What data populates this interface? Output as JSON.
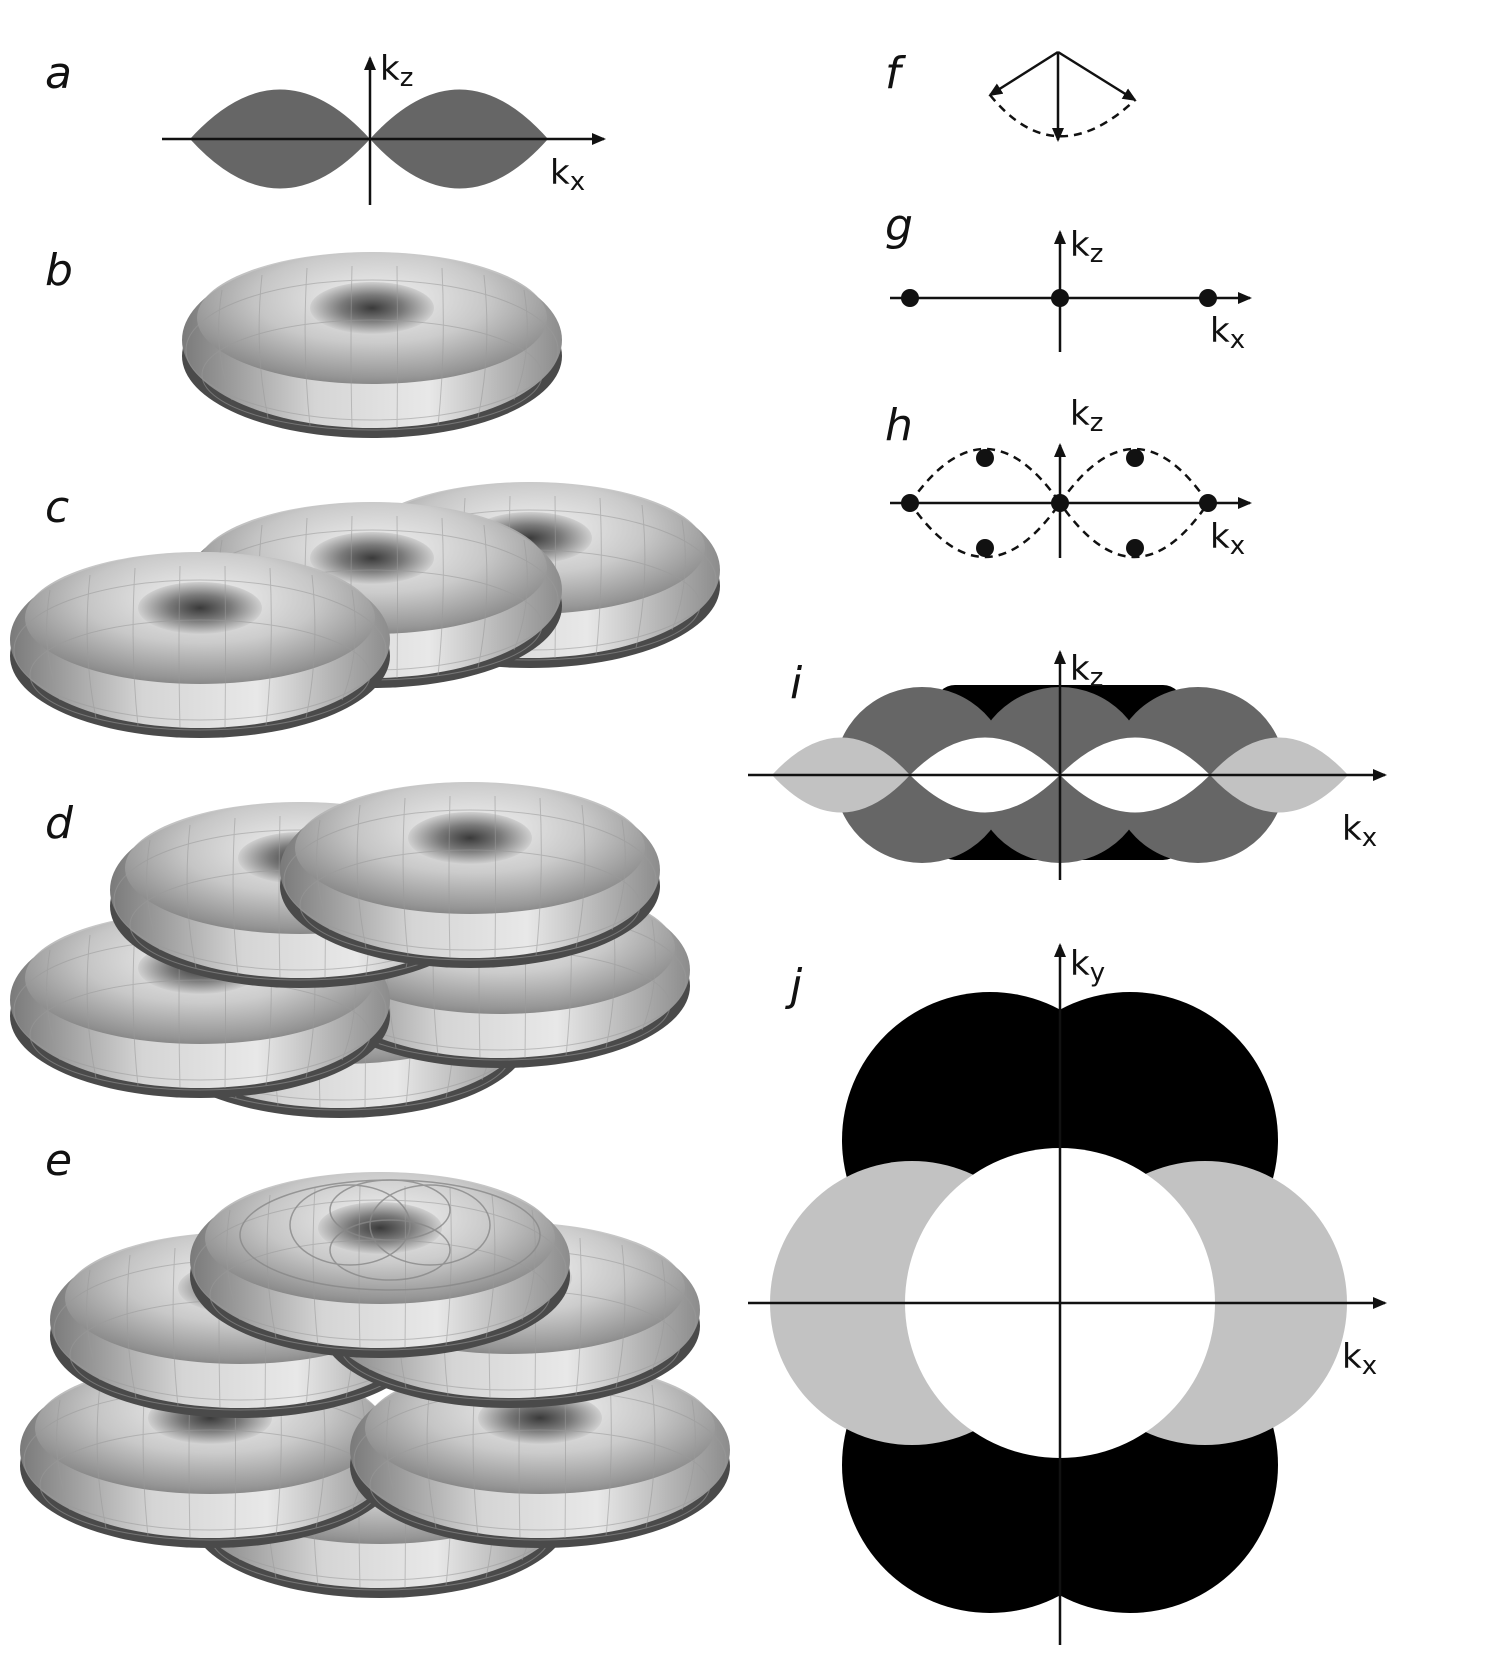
{
  "panels": {
    "a": {
      "label": "a",
      "axis_z": "k",
      "axis_z_sub": "z",
      "axis_x": "k",
      "axis_x_sub": "x"
    },
    "b": {
      "label": "b"
    },
    "c": {
      "label": "c"
    },
    "d": {
      "label": "d"
    },
    "e": {
      "label": "e"
    },
    "f": {
      "label": "f"
    },
    "g": {
      "label": "g",
      "axis_z": "k",
      "axis_z_sub": "z",
      "axis_x": "k",
      "axis_x_sub": "x"
    },
    "h": {
      "label": "h",
      "axis_z": "k",
      "axis_z_sub": "z",
      "axis_x": "k",
      "axis_x_sub": "x"
    },
    "i": {
      "label": "i",
      "axis_z": "k",
      "axis_z_sub": "z",
      "axis_x": "k",
      "axis_x_sub": "x"
    },
    "j": {
      "label": "j",
      "axis_y": "k",
      "axis_y_sub": "y",
      "axis_x": "k",
      "axis_x_sub": "x"
    }
  },
  "colors": {
    "dark_gray": "#666666",
    "black": "#000000",
    "light_gray": "#c2c2c2",
    "white": "#ffffff",
    "surface_light": "#e6e6e6",
    "surface_mid": "#b8b8b8",
    "surface_dark": "#606060"
  }
}
